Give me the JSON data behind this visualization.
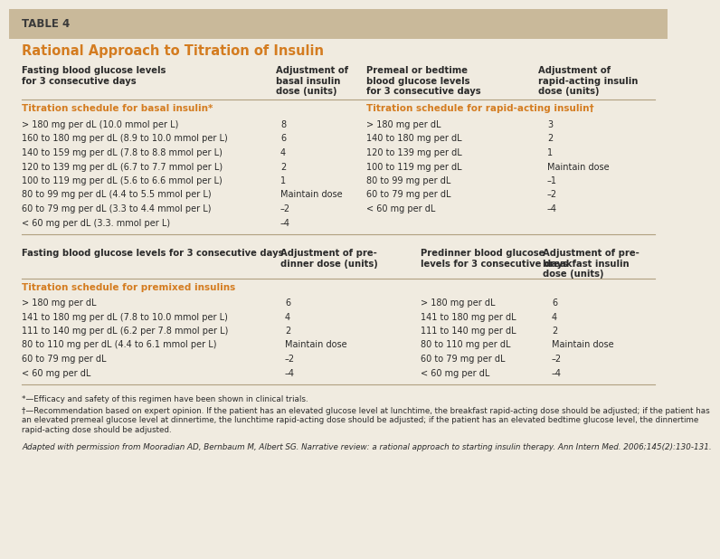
{
  "table_label": "TABLE 4",
  "title": "Rational Approach to Titration of Insulin",
  "bg_color": "#f0ebe0",
  "header_bg": "#c9b99a",
  "orange_color": "#d47c20",
  "text_color": "#2a2a2a",
  "line_color": "#b0a080",
  "section1_col1_header": "Fasting blood glucose levels\nfor 3 consecutive days",
  "section1_col2_header": "Adjustment of\nbasal insulin\ndose (units)",
  "section1_col3_header": "Premeal or bedtime\nblood glucose levels\nfor 3 consecutive days",
  "section1_col4_header": "Adjustment of\nrapid-acting insulin\ndose (units)",
  "section1_subheader_left": "Titration schedule for basal insulin*",
  "section1_subheader_right": "Titration schedule for rapid-acting insulin†",
  "section1_left_rows": [
    [
      "> 180 mg per dL (10.0 mmol per L)",
      "8"
    ],
    [
      "160 to 180 mg per dL (8.9 to 10.0 mmol per L)",
      "6"
    ],
    [
      "140 to 159 mg per dL (7.8 to 8.8 mmol per L)",
      "4"
    ],
    [
      "120 to 139 mg per dL (6.7 to 7.7 mmol per L)",
      "2"
    ],
    [
      "100 to 119 mg per dL (5.6 to 6.6 mmol per L)",
      "1"
    ],
    [
      "80 to 99 mg per dL (4.4 to 5.5 mmol per L)",
      "Maintain dose"
    ],
    [
      "60 to 79 mg per dL (3.3 to 4.4 mmol per L)",
      "–2"
    ],
    [
      "< 60 mg per dL (3.3. mmol per L)",
      "–4"
    ]
  ],
  "section1_right_rows": [
    [
      "> 180 mg per dL",
      "3"
    ],
    [
      "140 to 180 mg per dL",
      "2"
    ],
    [
      "120 to 139 mg per dL",
      "1"
    ],
    [
      "100 to 119 mg per dL",
      "Maintain dose"
    ],
    [
      "80 to 99 mg per dL",
      "–1"
    ],
    [
      "60 to 79 mg per dL",
      "–2"
    ],
    [
      "< 60 mg per dL",
      "–4"
    ]
  ],
  "section2_col1_header": "Fasting blood glucose levels for 3 consecutive days",
  "section2_col2_header": "Adjustment of pre-\ndinner dose (units)",
  "section2_col3_header": "Predinner blood glucose\nlevels for 3 consecutive days",
  "section2_col4_header": "Adjustment of pre-\nbreakfast insulin\ndose (units)",
  "section2_subheader": "Titration schedule for premixed insulins",
  "section2_left_rows": [
    [
      "> 180 mg per dL",
      "6"
    ],
    [
      "141 to 180 mg per dL (7.8 to 10.0 mmol per L)",
      "4"
    ],
    [
      "111 to 140 mg per dL (6.2 per 7.8 mmol per L)",
      "2"
    ],
    [
      "80 to 110 mg per dL (4.4 to 6.1 mmol per L)",
      "Maintain dose"
    ],
    [
      "60 to 79 mg per dL",
      "–2"
    ],
    [
      "< 60 mg per dL",
      "–4"
    ]
  ],
  "section2_right_rows": [
    [
      "> 180 mg per dL",
      "6"
    ],
    [
      "141 to 180 mg per dL",
      "4"
    ],
    [
      "111 to 140 mg per dL",
      "2"
    ],
    [
      "80 to 110 mg per dL",
      "Maintain dose"
    ],
    [
      "60 to 79 mg per dL",
      "–2"
    ],
    [
      "< 60 mg per dL",
      "–4"
    ]
  ],
  "footnote1": "*—Efficacy and safety of this regimen have been shown in clinical trials.",
  "footnote2": "†—Recommendation based on expert opinion. If the patient has an elevated glucose level at lunchtime, the breakfast rapid-acting dose should be adjusted; if the patient has an elevated premeal glucose level at dinnertime, the lunchtime rapid-acting dose should be adjusted; if the patient has an elevated bedtime glucose level, the dinnertime rapid-acting dose should be adjusted.",
  "footnote3": "Adapted with permission from Mooradian AD, Bernbaum M, Albert SG. Narrative review: a rational approach to starting insulin therapy. Ann Intern Med. 2006;145(2):130-131."
}
